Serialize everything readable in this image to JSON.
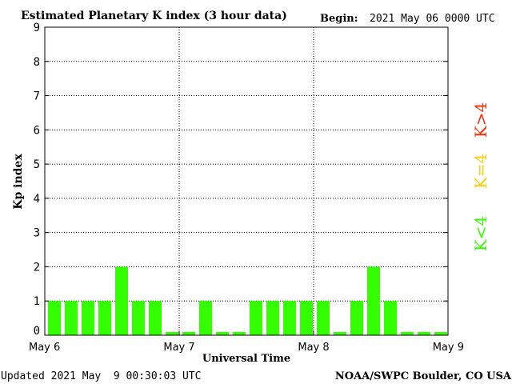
{
  "header": {
    "title": "Estimated Planetary K index (3 hour data)",
    "begin_label": "Begin:",
    "begin_value": "2021 May 06 0000 UTC"
  },
  "footer": {
    "updated": "Updated 2021 May  9 00:30:03 UTC",
    "source": "NOAA/SWPC Boulder, CO USA"
  },
  "legend": {
    "high": "K>4",
    "mid": "K=4",
    "low": "K<4",
    "colors": {
      "high": "#ff2a00",
      "mid": "#ffd000",
      "low": "#33ff00"
    }
  },
  "chart_data": {
    "type": "bar",
    "title": "Estimated Planetary K index (3 hour data)",
    "ylabel": "Kp index",
    "xlabel": "Universal Time",
    "ylim": [
      0,
      9
    ],
    "yticks": [
      0,
      1,
      2,
      3,
      4,
      5,
      6,
      7,
      8,
      9
    ],
    "xticks": [
      "May 6",
      "May 7",
      "May 8",
      "May 9"
    ],
    "bar_color": "#33ff00",
    "grid": "dotted",
    "interval_hours": 3,
    "values": [
      1,
      1,
      1,
      1,
      2,
      1,
      1,
      0,
      0,
      1,
      0,
      0,
      1,
      1,
      1,
      1,
      1,
      0,
      1,
      2,
      1,
      0,
      0,
      0
    ]
  }
}
